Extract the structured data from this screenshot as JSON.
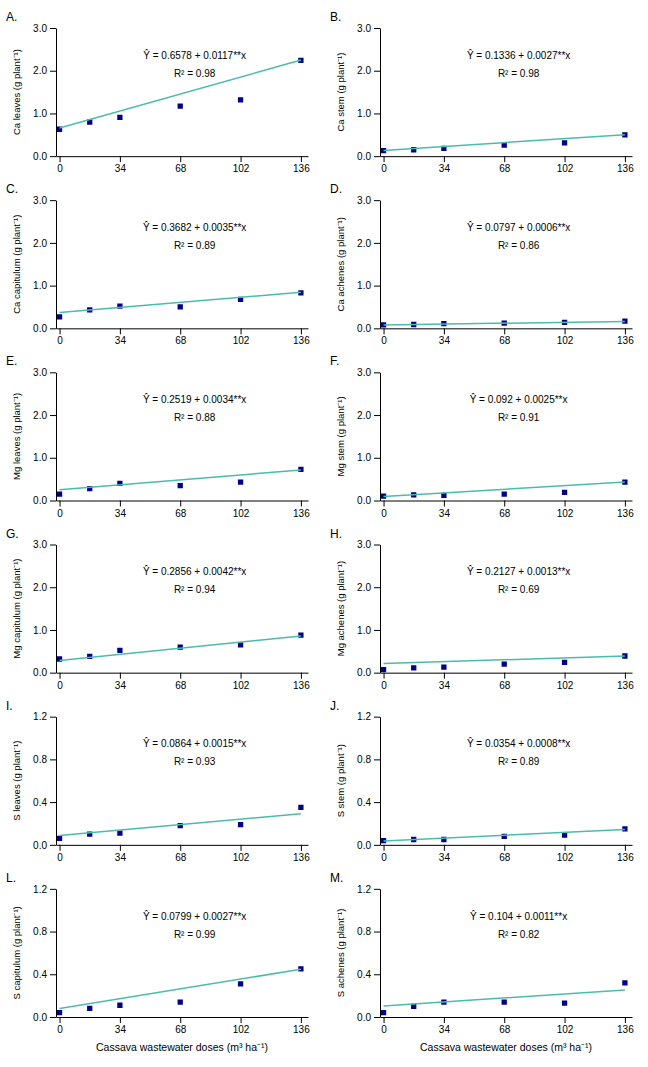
{
  "chart_data": [
    {
      "type": "scatter",
      "title": "A.",
      "ylabel": "Ca leaves (g plant⁻¹)",
      "annotations": [
        "Ŷ = 0.6578 + 0.0117**x",
        "R² = 0.98"
      ],
      "xlim": [
        -2,
        140
      ],
      "xticks": [
        0,
        34,
        68,
        102,
        136
      ],
      "ylim": [
        0,
        3
      ],
      "yticks": [
        {
          "value": 0,
          "label": "0.0"
        },
        {
          "value": 1,
          "label": "1.0"
        },
        {
          "value": 2,
          "label": "2.0"
        },
        {
          "value": 3,
          "label": "3.0"
        }
      ],
      "grid": false,
      "series": [
        {
          "type": "scatter",
          "marker": "square",
          "color": "#00008B",
          "x": [
            0,
            17,
            34,
            68,
            102,
            136
          ],
          "values": [
            0.63,
            0.8,
            0.91,
            1.17,
            1.32,
            2.24
          ]
        },
        {
          "type": "line",
          "line_style": "solid",
          "color": "#4ABCAC",
          "x": [
            0,
            136
          ],
          "values": [
            0.6578,
            2.249
          ]
        }
      ]
    },
    {
      "type": "scatter",
      "title": "B.",
      "ylabel": "Ca stem (g plant⁻¹)",
      "annotations": [
        "Ŷ = 0.1336 + 0.0027**x",
        "R² = 0.98"
      ],
      "xlim": [
        -2,
        140
      ],
      "xticks": [
        0,
        34,
        68,
        102,
        136
      ],
      "ylim": [
        0,
        3
      ],
      "yticks": [
        {
          "value": 0,
          "label": "0.0"
        },
        {
          "value": 1,
          "label": "1.0"
        },
        {
          "value": 2,
          "label": "2.0"
        },
        {
          "value": 3,
          "label": "3.0"
        }
      ],
      "grid": false,
      "series": [
        {
          "type": "scatter",
          "marker": "square",
          "color": "#00008B",
          "x": [
            0,
            17,
            34,
            68,
            102,
            136
          ],
          "values": [
            0.13,
            0.15,
            0.18,
            0.26,
            0.31,
            0.5
          ]
        },
        {
          "type": "line",
          "line_style": "solid",
          "color": "#4ABCAC",
          "x": [
            0,
            136
          ],
          "values": [
            0.1336,
            0.5008
          ]
        }
      ]
    },
    {
      "type": "scatter",
      "title": "C.",
      "ylabel": "Ca capitulum (g plant⁻¹)",
      "annotations": [
        "Ŷ = 0.3682 + 0.0035**x",
        "R² = 0.89"
      ],
      "xlim": [
        -2,
        140
      ],
      "xticks": [
        0,
        34,
        68,
        102,
        136
      ],
      "ylim": [
        0,
        3
      ],
      "yticks": [
        {
          "value": 0,
          "label": "0.0"
        },
        {
          "value": 1,
          "label": "1.0"
        },
        {
          "value": 2,
          "label": "2.0"
        },
        {
          "value": 3,
          "label": "3.0"
        }
      ],
      "grid": false,
      "series": [
        {
          "type": "scatter",
          "marker": "square",
          "color": "#00008B",
          "x": [
            0,
            17,
            34,
            68,
            102,
            136
          ],
          "values": [
            0.27,
            0.43,
            0.52,
            0.5,
            0.68,
            0.83
          ]
        },
        {
          "type": "line",
          "line_style": "solid",
          "color": "#4ABCAC",
          "x": [
            0,
            136
          ],
          "values": [
            0.3682,
            0.8442
          ]
        }
      ]
    },
    {
      "type": "scatter",
      "title": "D.",
      "ylabel": "Ca achenes (g plant⁻¹)",
      "annotations": [
        "Ŷ = 0.0797 + 0.0006**x",
        "R² = 0.86"
      ],
      "xlim": [
        -2,
        140
      ],
      "xticks": [
        0,
        34,
        68,
        102,
        136
      ],
      "ylim": [
        0,
        3
      ],
      "yticks": [
        {
          "value": 0,
          "label": "0.0"
        },
        {
          "value": 1,
          "label": "1.0"
        },
        {
          "value": 2,
          "label": "2.0"
        },
        {
          "value": 3,
          "label": "3.0"
        }
      ],
      "grid": false,
      "series": [
        {
          "type": "scatter",
          "marker": "square",
          "color": "#00008B",
          "x": [
            0,
            17,
            34,
            68,
            102,
            136
          ],
          "values": [
            0.08,
            0.09,
            0.11,
            0.12,
            0.14,
            0.17
          ]
        },
        {
          "type": "line",
          "line_style": "solid",
          "color": "#4ABCAC",
          "x": [
            0,
            136
          ],
          "values": [
            0.0797,
            0.1613
          ]
        }
      ]
    },
    {
      "type": "scatter",
      "title": "E.",
      "ylabel": "Mg leaves (g plant⁻¹)",
      "annotations": [
        "Ŷ = 0.2519 + 0.0034**x",
        "R² = 0.88"
      ],
      "xlim": [
        -2,
        140
      ],
      "xticks": [
        0,
        34,
        68,
        102,
        136
      ],
      "ylim": [
        0,
        3
      ],
      "yticks": [
        {
          "value": 0,
          "label": "0.0"
        },
        {
          "value": 1,
          "label": "1.0"
        },
        {
          "value": 2,
          "label": "2.0"
        },
        {
          "value": 3,
          "label": "3.0"
        }
      ],
      "grid": false,
      "series": [
        {
          "type": "scatter",
          "marker": "square",
          "color": "#00008B",
          "x": [
            0,
            17,
            34,
            68,
            102,
            136
          ],
          "values": [
            0.15,
            0.28,
            0.4,
            0.35,
            0.43,
            0.73
          ]
        },
        {
          "type": "line",
          "line_style": "solid",
          "color": "#4ABCAC",
          "x": [
            0,
            136
          ],
          "values": [
            0.2519,
            0.7143
          ]
        }
      ]
    },
    {
      "type": "scatter",
      "title": "F.",
      "ylabel": "Mg stem (g plant⁻¹)",
      "annotations": [
        "Ŷ = 0.092 + 0.0025**x",
        "R² = 0.91"
      ],
      "xlim": [
        -2,
        140
      ],
      "xticks": [
        0,
        34,
        68,
        102,
        136
      ],
      "ylim": [
        0,
        3
      ],
      "yticks": [
        {
          "value": 0,
          "label": "0.0"
        },
        {
          "value": 1,
          "label": "1.0"
        },
        {
          "value": 2,
          "label": "2.0"
        },
        {
          "value": 3,
          "label": "3.0"
        }
      ],
      "grid": false,
      "series": [
        {
          "type": "scatter",
          "marker": "square",
          "color": "#00008B",
          "x": [
            0,
            17,
            34,
            68,
            102,
            136
          ],
          "values": [
            0.1,
            0.13,
            0.12,
            0.15,
            0.19,
            0.43
          ]
        },
        {
          "type": "line",
          "line_style": "solid",
          "color": "#4ABCAC",
          "x": [
            0,
            136
          ],
          "values": [
            0.092,
            0.432
          ]
        }
      ]
    },
    {
      "type": "scatter",
      "title": "G.",
      "ylabel": "Mg capitulum (g plant⁻¹)",
      "annotations": [
        "Ŷ = 0.2856 + 0.0042**x",
        "R² = 0.94"
      ],
      "xlim": [
        -2,
        140
      ],
      "xticks": [
        0,
        34,
        68,
        102,
        136
      ],
      "ylim": [
        0,
        3
      ],
      "yticks": [
        {
          "value": 0,
          "label": "0.0"
        },
        {
          "value": 1,
          "label": "1.0"
        },
        {
          "value": 2,
          "label": "2.0"
        },
        {
          "value": 3,
          "label": "3.0"
        }
      ],
      "grid": false,
      "series": [
        {
          "type": "scatter",
          "marker": "square",
          "color": "#00008B",
          "x": [
            0,
            17,
            34,
            68,
            102,
            136
          ],
          "values": [
            0.32,
            0.38,
            0.52,
            0.6,
            0.65,
            0.88
          ]
        },
        {
          "type": "line",
          "line_style": "solid",
          "color": "#4ABCAC",
          "x": [
            0,
            136
          ],
          "values": [
            0.2856,
            0.8568
          ]
        }
      ]
    },
    {
      "type": "scatter",
      "title": "H.",
      "ylabel": "Mg achenes (g plant⁻¹)",
      "annotations": [
        "Ŷ = 0.2127 + 0.0013**x",
        "R² = 0.69"
      ],
      "xlim": [
        -2,
        140
      ],
      "xticks": [
        0,
        34,
        68,
        102,
        136
      ],
      "ylim": [
        0,
        3
      ],
      "yticks": [
        {
          "value": 0,
          "label": "0.0"
        },
        {
          "value": 1,
          "label": "1.0"
        },
        {
          "value": 2,
          "label": "2.0"
        },
        {
          "value": 3,
          "label": "3.0"
        }
      ],
      "grid": false,
      "series": [
        {
          "type": "scatter",
          "marker": "square",
          "color": "#00008B",
          "x": [
            0,
            17,
            34,
            68,
            102,
            136
          ],
          "values": [
            0.07,
            0.11,
            0.13,
            0.2,
            0.24,
            0.39
          ]
        },
        {
          "type": "line",
          "line_style": "solid",
          "color": "#4ABCAC",
          "x": [
            0,
            136
          ],
          "values": [
            0.2127,
            0.3895
          ]
        }
      ]
    },
    {
      "type": "scatter",
      "title": "I.",
      "ylabel": "S leaves (g plant⁻¹)",
      "annotations": [
        "Ŷ = 0.0864 + 0.0015**x",
        "R² = 0.93"
      ],
      "xlim": [
        -2,
        140
      ],
      "xticks": [
        0,
        34,
        68,
        102,
        136
      ],
      "ylim": [
        0,
        1.2
      ],
      "yticks": [
        {
          "value": 0,
          "label": "0.0"
        },
        0.4,
        0.8,
        1.2
      ],
      "grid": false,
      "series": [
        {
          "type": "scatter",
          "marker": "square",
          "color": "#00008B",
          "x": [
            0,
            17,
            34,
            68,
            102,
            136
          ],
          "values": [
            0.06,
            0.1,
            0.11,
            0.18,
            0.19,
            0.35
          ]
        },
        {
          "type": "line",
          "line_style": "solid",
          "color": "#4ABCAC",
          "x": [
            0,
            136
          ],
          "values": [
            0.0864,
            0.2904
          ]
        }
      ]
    },
    {
      "type": "scatter",
      "title": "J.",
      "ylabel": "S stem (g plant⁻¹)",
      "annotations": [
        "Ŷ = 0.0354 + 0.0008**x",
        "R² = 0.89"
      ],
      "xlim": [
        -2,
        140
      ],
      "xticks": [
        0,
        34,
        68,
        102,
        136
      ],
      "ylim": [
        0,
        1.2
      ],
      "yticks": [
        {
          "value": 0,
          "label": "0.0"
        },
        0.4,
        0.8,
        1.2
      ],
      "grid": false,
      "series": [
        {
          "type": "scatter",
          "marker": "square",
          "color": "#00008B",
          "x": [
            0,
            17,
            34,
            68,
            102,
            136
          ],
          "values": [
            0.04,
            0.05,
            0.05,
            0.08,
            0.09,
            0.15
          ]
        },
        {
          "type": "line",
          "line_style": "solid",
          "color": "#4ABCAC",
          "x": [
            0,
            136
          ],
          "values": [
            0.0354,
            0.1442
          ]
        }
      ]
    },
    {
      "type": "scatter",
      "title": "L.",
      "ylabel": "S capitulum (g plant⁻¹)",
      "xlabel": "Cassava wastewater doses (m³ ha⁻¹)",
      "annotations": [
        "Ŷ = 0.0799 + 0.0027**x",
        "R² = 0.99"
      ],
      "xlim": [
        -2,
        140
      ],
      "xticks": [
        0,
        34,
        68,
        102,
        136
      ],
      "ylim": [
        0,
        1.2
      ],
      "yticks": [
        {
          "value": 0,
          "label": "0.0"
        },
        0.4,
        0.8,
        1.2
      ],
      "grid": false,
      "series": [
        {
          "type": "scatter",
          "marker": "square",
          "color": "#00008B",
          "x": [
            0,
            17,
            34,
            68,
            102,
            136
          ],
          "values": [
            0.04,
            0.08,
            0.11,
            0.14,
            0.31,
            0.45
          ]
        },
        {
          "type": "line",
          "line_style": "solid",
          "color": "#4ABCAC",
          "x": [
            0,
            136
          ],
          "values": [
            0.0799,
            0.4471
          ]
        }
      ]
    },
    {
      "type": "scatter",
      "title": "M.",
      "ylabel": "S achenes (g plant⁻¹)",
      "xlabel": "Cassava wastewater doses (m³ ha⁻¹)",
      "annotations": [
        "Ŷ = 0.104 + 0.0011**x",
        "R² = 0.82"
      ],
      "xlim": [
        -2,
        140
      ],
      "xticks": [
        0,
        34,
        68,
        102,
        136
      ],
      "ylim": [
        0,
        1.2
      ],
      "yticks": [
        {
          "value": 0,
          "label": "0.0"
        },
        0.4,
        0.8,
        1.2
      ],
      "grid": false,
      "series": [
        {
          "type": "scatter",
          "marker": "square",
          "color": "#00008B",
          "x": [
            0,
            17,
            34,
            68,
            102,
            136
          ],
          "values": [
            0.04,
            0.1,
            0.14,
            0.14,
            0.13,
            0.32
          ]
        },
        {
          "type": "line",
          "line_style": "solid",
          "color": "#4ABCAC",
          "x": [
            0,
            136
          ],
          "values": [
            0.104,
            0.2536
          ]
        }
      ]
    }
  ]
}
